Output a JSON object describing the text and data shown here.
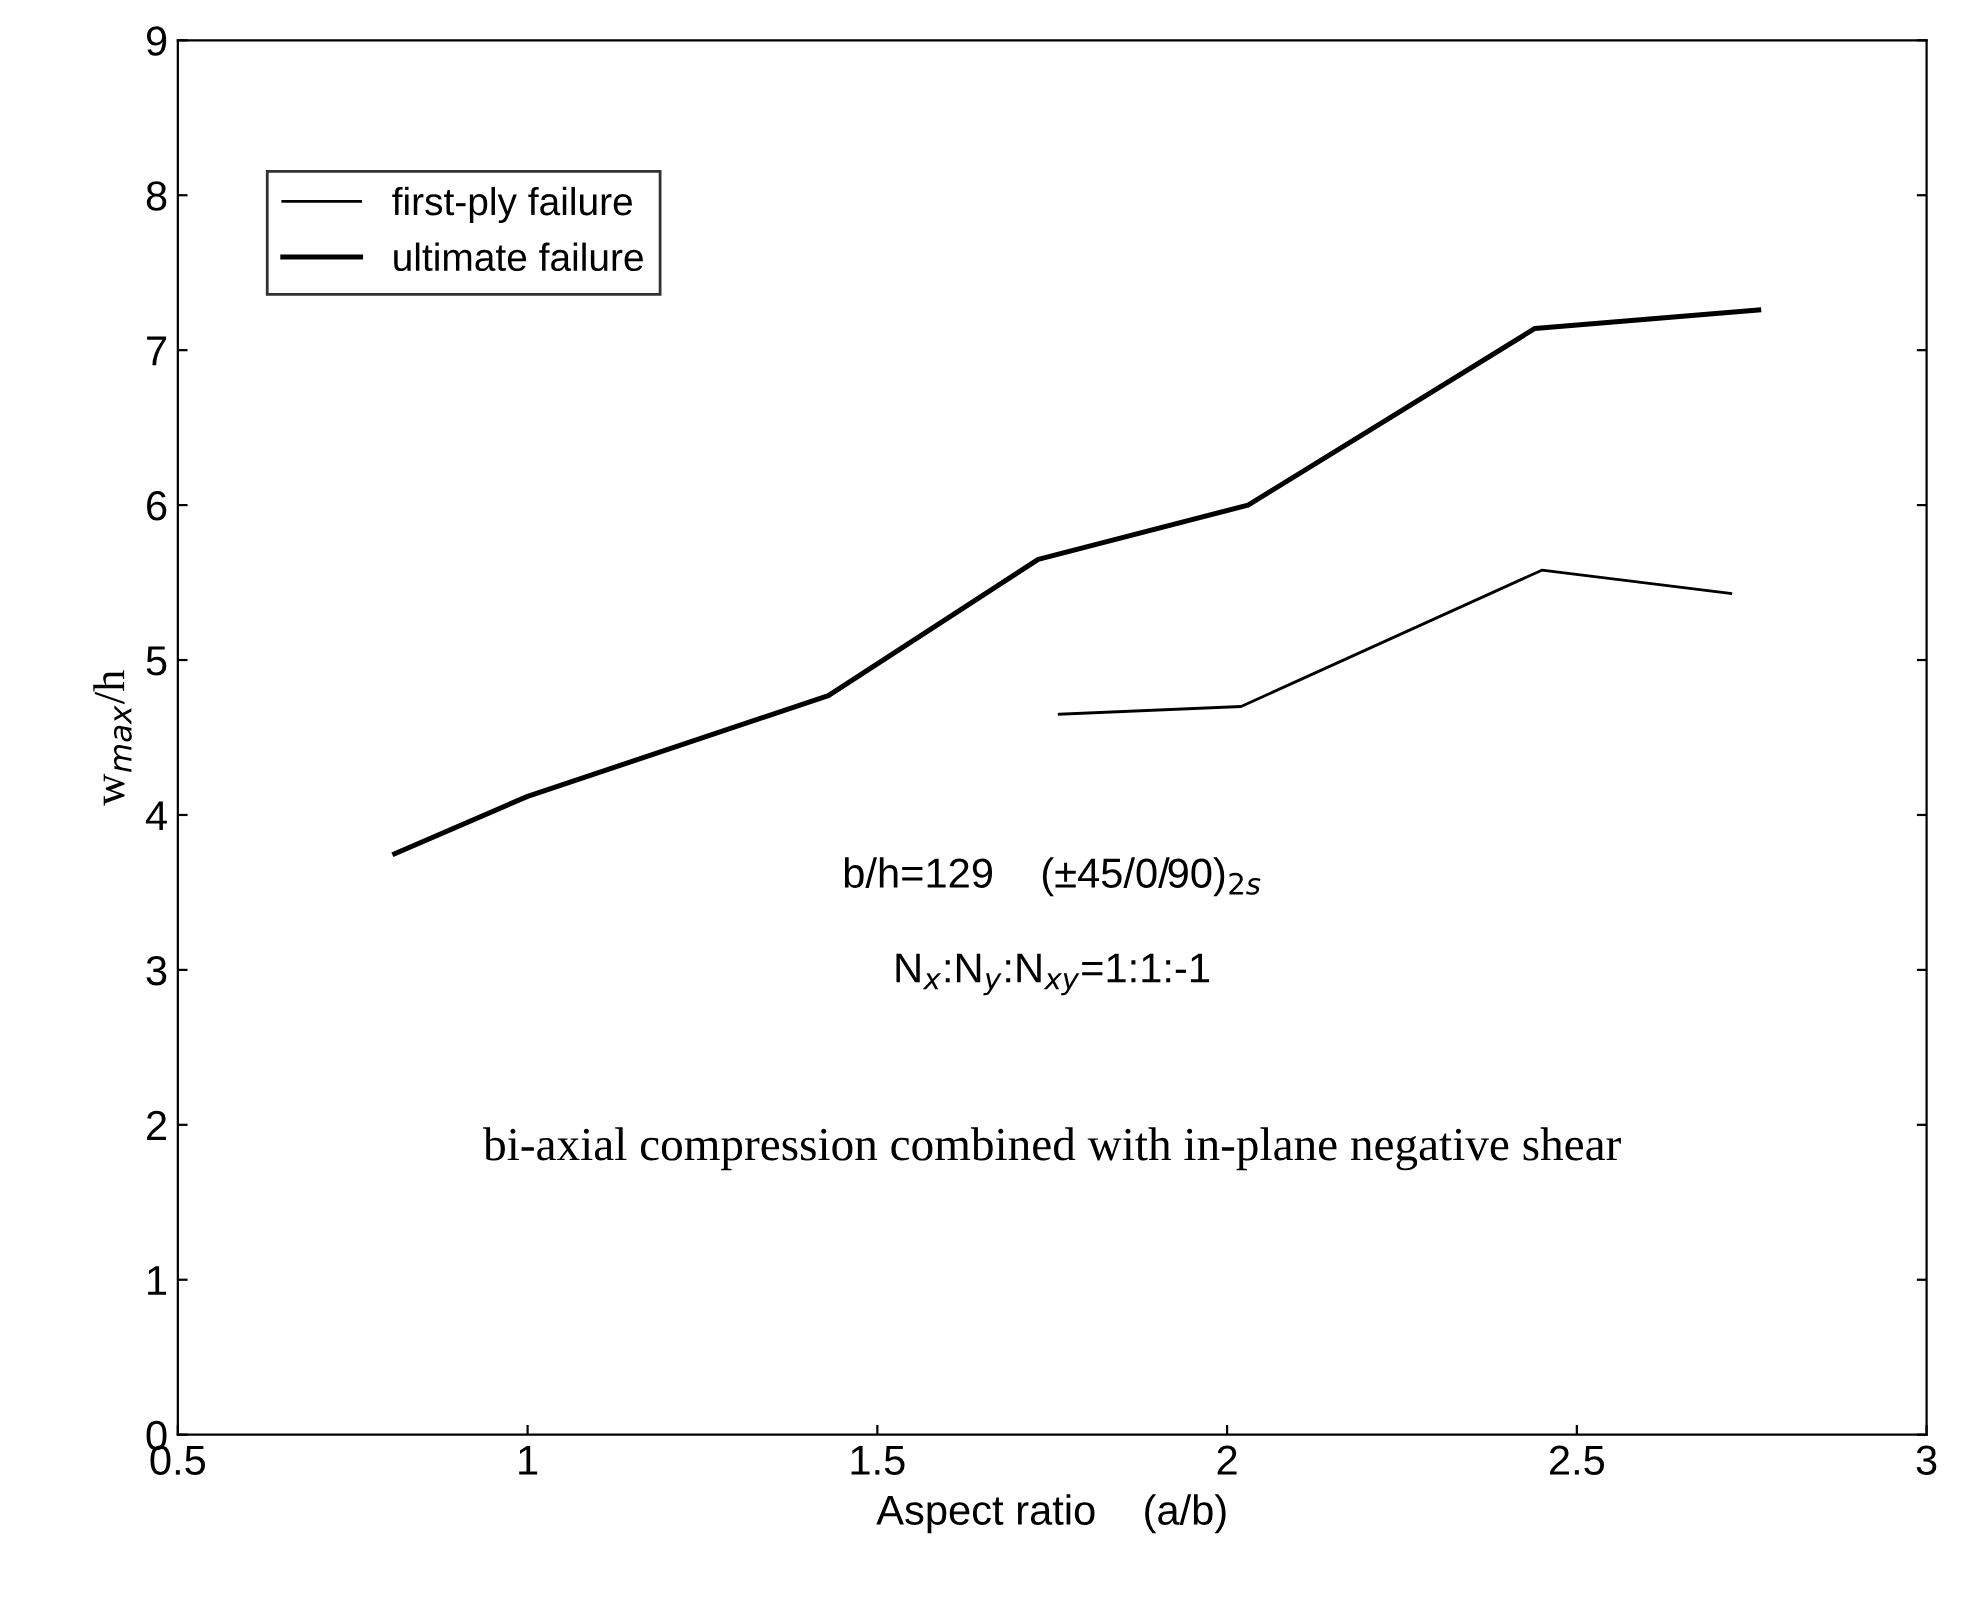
{
  "chart_data": {
    "type": "line",
    "xlabel": "Aspect ratio    (a/b)",
    "ylabel": "w$_{max}$/h",
    "series": [
      {
        "name": "first-ply failure",
        "color": "#000000",
        "x": [
          1.76,
          2.02,
          2.45,
          2.72
        ],
        "values": [
          4.65,
          4.7,
          5.58,
          5.43
        ]
      },
      {
        "name": "ultimate failure",
        "color": "#000000",
        "x": [
          0.81,
          1.0,
          1.43,
          1.73,
          2.03,
          2.44,
          2.76
        ],
        "values": [
          3.75,
          4.12,
          4.77,
          5.65,
          6.0,
          7.14,
          7.26
        ]
      }
    ],
    "xlim": [
      0.5,
      3
    ],
    "ylim": [
      0,
      9
    ],
    "xticks": [
      0.5,
      1,
      1.5,
      2,
      2.5,
      3
    ],
    "yticks": [
      0,
      1,
      2,
      3,
      4,
      5,
      6,
      7,
      8,
      9
    ],
    "annotations": [
      "b/h=129    (±45/0/90)$_{2s}$",
      "N$_{x}$:N$_{y}$:N$_{xy}$=1:1:-1",
      "bi-axial compression combined with in-plane negative shear"
    ],
    "legend": "top left",
    "grid": false,
    "line_style": "solid",
    "marker": "none"
  }
}
